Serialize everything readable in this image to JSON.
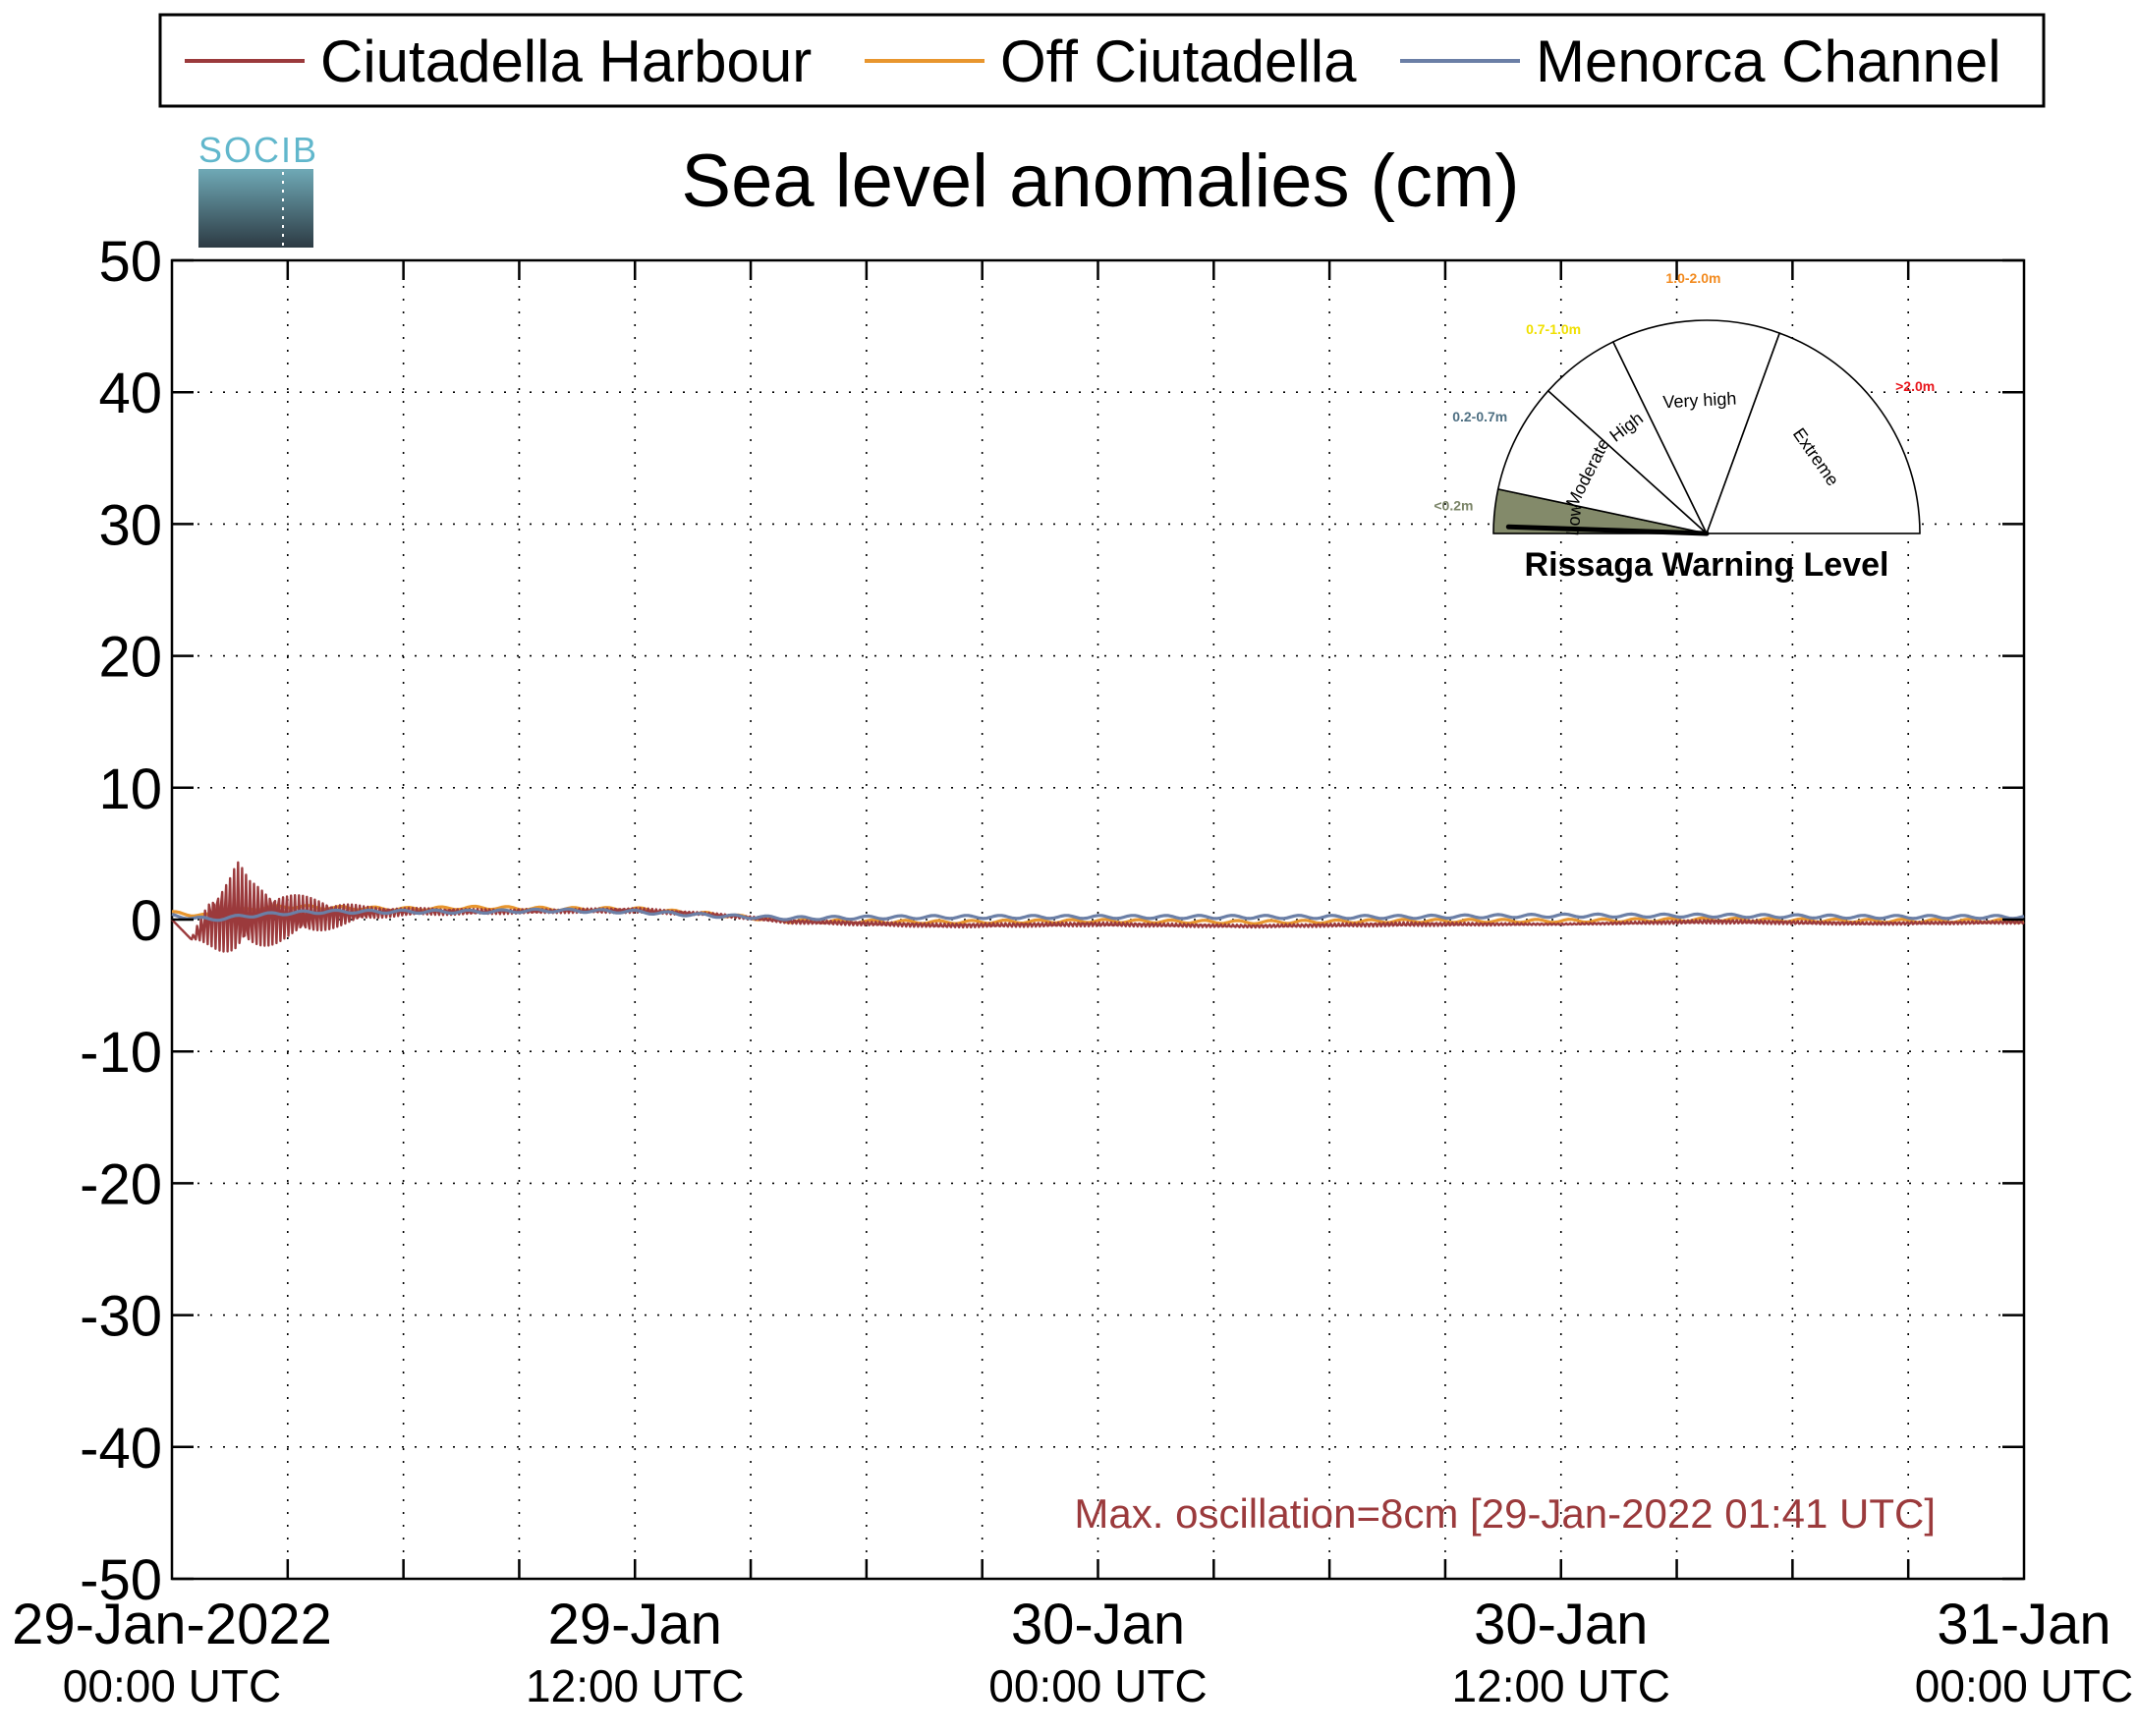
{
  "chart_data": {
    "type": "line",
    "title": "Sea level anomalies (cm)",
    "ylim": [
      -50,
      50
    ],
    "yticks": [
      "50",
      "40",
      "30",
      "20",
      "10",
      "0",
      "-10",
      "-20",
      "-30",
      "-40",
      "-50"
    ],
    "xlim_hours": [
      0,
      48
    ],
    "xtick_labels": [
      {
        "hour": 0,
        "date": "29-Jan-2022",
        "time": "00:00 UTC"
      },
      {
        "hour": 12,
        "date": "29-Jan",
        "time": "12:00 UTC"
      },
      {
        "hour": 24,
        "date": "30-Jan",
        "time": "00:00 UTC"
      },
      {
        "hour": 36,
        "date": "30-Jan",
        "time": "12:00 UTC"
      },
      {
        "hour": 48,
        "date": "31-Jan",
        "time": "00:00 UTC"
      }
    ],
    "grid": true,
    "legend": {
      "placement": "top"
    },
    "series": [
      {
        "name": "Ciutadella Harbour",
        "color": "#9b3a3c",
        "x": [
          0,
          0.5,
          1.0,
          1.5,
          1.7,
          2.0,
          2.5,
          3.0,
          4.0,
          5.0,
          6.0,
          8.0,
          10.0,
          12.0,
          14.0,
          16.0,
          20.0,
          24.0,
          28.0,
          32.0,
          36.0,
          40.0,
          44.0,
          48.0
        ],
        "y": [
          0.0,
          -1.5,
          2.0,
          3.5,
          4.5,
          3.0,
          2.5,
          2.0,
          1.5,
          1.0,
          0.9,
          0.8,
          0.8,
          0.9,
          0.5,
          0.0,
          -0.3,
          -0.2,
          -0.4,
          -0.2,
          -0.3,
          0.0,
          -0.2,
          -0.1
        ],
        "envelope_min": [
          0.0,
          -1.5,
          -2.0,
          -2.8,
          -3.2,
          -2.5,
          -2.0,
          -1.5,
          -0.8,
          0.0,
          0.3,
          0.4,
          0.5,
          0.5,
          0.3,
          -0.3,
          -0.6,
          -0.5,
          -0.6,
          -0.5,
          -0.4,
          -0.3,
          -0.4,
          -0.3
        ]
      },
      {
        "name": "Off Ciutadella",
        "color": "#e8962e",
        "x": [
          0,
          1,
          2,
          3,
          4,
          6,
          8,
          10,
          12,
          14,
          16,
          20,
          24,
          28,
          32,
          36,
          40,
          44,
          48
        ],
        "y": [
          0.5,
          0.3,
          0.8,
          1.0,
          0.9,
          0.8,
          0.9,
          0.8,
          0.8,
          0.4,
          -0.1,
          -0.2,
          -0.1,
          -0.2,
          -0.1,
          -0.1,
          0.0,
          -0.1,
          -0.1
        ]
      },
      {
        "name": "Menorca Channel",
        "color": "#6b7fa6",
        "x": [
          0,
          1,
          2,
          3,
          4,
          6,
          8,
          10,
          12,
          14,
          16,
          20,
          24,
          28,
          32,
          36,
          40,
          44,
          48
        ],
        "y": [
          0.3,
          0.0,
          0.3,
          0.5,
          0.6,
          0.6,
          0.6,
          0.7,
          0.6,
          0.3,
          0.1,
          0.2,
          0.2,
          0.2,
          0.2,
          0.3,
          0.3,
          0.2,
          0.2
        ]
      }
    ],
    "annotation": "Max. oscillation=8cm [29-Jan-2022 01:41 UTC]"
  },
  "logo": {
    "text": "SOCIB"
  },
  "gauge": {
    "title": "Rissaga Warning Level",
    "segments": [
      {
        "name": "Low",
        "range": "<0.2m",
        "range_color": "#7a8467",
        "fill": "#838a6a"
      },
      {
        "name": "Moderate",
        "range": "0.2-0.7m",
        "range_color": "#4e6f82",
        "fill": "#ffffff"
      },
      {
        "name": "High",
        "range": "0.7-1.0m",
        "range_color": "#f0e000",
        "fill": "#ffffff"
      },
      {
        "name": "Very high",
        "range": "1.0-2.0m",
        "range_color": "#f28a1e",
        "fill": "#ffffff"
      },
      {
        "name": "Extreme",
        "range": ">2.0m",
        "range_color": "#e8151b",
        "fill": "#ffffff"
      }
    ],
    "level": 0.08,
    "active_level": "Low"
  }
}
